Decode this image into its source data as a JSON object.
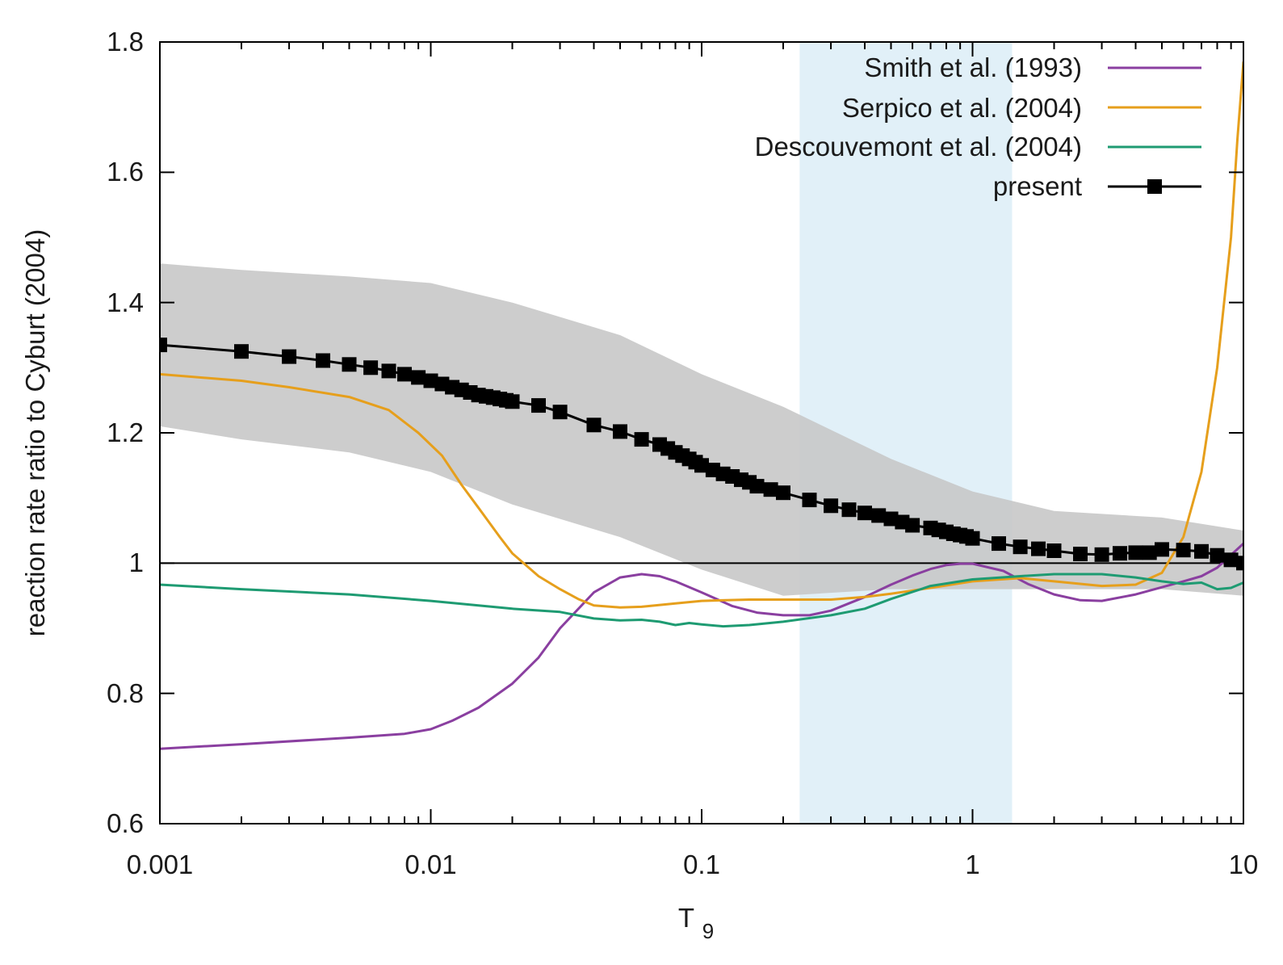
{
  "chart_data": {
    "type": "line",
    "title": "",
    "xlabel": "T",
    "xlabel_subscript": "9",
    "ylabel": "reaction rate ratio to Cyburt (2004)",
    "xscale": "log",
    "xlim": [
      0.001,
      10
    ],
    "ylim": [
      0.6,
      1.8
    ],
    "x_ticks": [
      0.001,
      0.01,
      0.1,
      1,
      10
    ],
    "x_tick_labels": [
      "0.001",
      "0.01",
      "0.1",
      "1",
      "10"
    ],
    "y_ticks": [
      0.6,
      0.8,
      1.0,
      1.2,
      1.4,
      1.6,
      1.8
    ],
    "y_tick_labels": [
      "0.6",
      "0.8",
      "1",
      "1.2",
      "1.4",
      "1.6",
      "1.8"
    ],
    "grid": false,
    "legend_position": "top-right",
    "reference_line": {
      "y": 1.0,
      "color": "#000000"
    },
    "highlight_band": {
      "x_range": [
        0.23,
        1.4
      ],
      "color": "#e1f0f8"
    },
    "uncertainty_band": {
      "color": "#c8c8c8",
      "x": [
        0.001,
        0.002,
        0.005,
        0.01,
        0.02,
        0.05,
        0.1,
        0.2,
        0.5,
        1,
        2,
        5,
        10
      ],
      "upper": [
        1.46,
        1.45,
        1.44,
        1.43,
        1.4,
        1.35,
        1.29,
        1.24,
        1.16,
        1.11,
        1.08,
        1.07,
        1.05
      ],
      "lower": [
        1.21,
        1.19,
        1.17,
        1.14,
        1.09,
        1.04,
        0.99,
        0.95,
        0.96,
        0.96,
        0.96,
        0.96,
        0.95
      ]
    },
    "series": [
      {
        "name": "Smith et al. (1993)",
        "color": "#8a3fa0",
        "x": [
          0.001,
          0.002,
          0.005,
          0.008,
          0.01,
          0.012,
          0.015,
          0.02,
          0.025,
          0.03,
          0.04,
          0.05,
          0.06,
          0.07,
          0.08,
          0.1,
          0.13,
          0.16,
          0.2,
          0.25,
          0.3,
          0.4,
          0.5,
          0.6,
          0.7,
          0.8,
          0.9,
          1.0,
          1.3,
          1.6,
          2.0,
          2.5,
          3.0,
          4.0,
          5.0,
          6.0,
          7.0,
          8.0,
          10.0
        ],
        "values": [
          0.715,
          0.722,
          0.732,
          0.738,
          0.745,
          0.758,
          0.778,
          0.815,
          0.855,
          0.9,
          0.955,
          0.978,
          0.983,
          0.98,
          0.972,
          0.955,
          0.934,
          0.924,
          0.92,
          0.92,
          0.927,
          0.948,
          0.967,
          0.981,
          0.991,
          0.997,
          0.999,
          0.999,
          0.988,
          0.968,
          0.952,
          0.943,
          0.942,
          0.952,
          0.963,
          0.972,
          0.98,
          0.993,
          1.03
        ]
      },
      {
        "name": "Serpico et al. (2004)",
        "color": "#e69f1c",
        "x": [
          0.001,
          0.002,
          0.003,
          0.005,
          0.007,
          0.009,
          0.011,
          0.013,
          0.015,
          0.018,
          0.02,
          0.025,
          0.03,
          0.035,
          0.04,
          0.05,
          0.06,
          0.08,
          0.1,
          0.15,
          0.2,
          0.3,
          0.4,
          0.5,
          0.7,
          1.0,
          1.5,
          2.0,
          3.0,
          4.0,
          5.0,
          6.0,
          7.0,
          8.0,
          9.0,
          9.5,
          10.0
        ],
        "values": [
          1.29,
          1.28,
          1.27,
          1.255,
          1.235,
          1.2,
          1.165,
          1.12,
          1.085,
          1.04,
          1.015,
          0.98,
          0.96,
          0.945,
          0.935,
          0.932,
          0.933,
          0.938,
          0.942,
          0.944,
          0.944,
          0.944,
          0.948,
          0.953,
          0.962,
          0.972,
          0.977,
          0.972,
          0.965,
          0.967,
          0.985,
          1.04,
          1.14,
          1.3,
          1.5,
          1.65,
          1.77
        ]
      },
      {
        "name": "Descouvemont et al. (2004)",
        "color": "#1e9b72",
        "x": [
          0.001,
          0.002,
          0.005,
          0.01,
          0.02,
          0.03,
          0.04,
          0.05,
          0.06,
          0.07,
          0.08,
          0.09,
          0.1,
          0.12,
          0.15,
          0.2,
          0.3,
          0.4,
          0.5,
          0.7,
          1.0,
          1.5,
          2.0,
          3.0,
          4.0,
          5.0,
          6.0,
          7.0,
          8.0,
          9.0,
          10.0
        ],
        "values": [
          0.967,
          0.96,
          0.952,
          0.942,
          0.93,
          0.925,
          0.915,
          0.912,
          0.913,
          0.91,
          0.905,
          0.908,
          0.906,
          0.903,
          0.905,
          0.91,
          0.92,
          0.93,
          0.945,
          0.965,
          0.975,
          0.98,
          0.983,
          0.983,
          0.978,
          0.972,
          0.968,
          0.97,
          0.96,
          0.962,
          0.97
        ]
      },
      {
        "name": "present",
        "color": "#000000",
        "marker": "square",
        "x": [
          0.001,
          0.002,
          0.003,
          0.004,
          0.005,
          0.006,
          0.007,
          0.008,
          0.009,
          0.01,
          0.011,
          0.012,
          0.013,
          0.014,
          0.015,
          0.016,
          0.017,
          0.018,
          0.019,
          0.02,
          0.025,
          0.03,
          0.04,
          0.05,
          0.06,
          0.07,
          0.075,
          0.08,
          0.085,
          0.09,
          0.095,
          0.1,
          0.11,
          0.12,
          0.13,
          0.14,
          0.15,
          0.16,
          0.18,
          0.2,
          0.25,
          0.3,
          0.35,
          0.4,
          0.45,
          0.5,
          0.55,
          0.6,
          0.7,
          0.75,
          0.8,
          0.85,
          0.9,
          0.95,
          1.0,
          1.25,
          1.5,
          1.75,
          2.0,
          2.5,
          3.0,
          3.5,
          4.0,
          4.5,
          5.0,
          6.0,
          7.0,
          8.0,
          9.0,
          10.0
        ],
        "values": [
          1.335,
          1.325,
          1.317,
          1.311,
          1.305,
          1.3,
          1.295,
          1.29,
          1.285,
          1.28,
          1.275,
          1.27,
          1.266,
          1.262,
          1.258,
          1.256,
          1.254,
          1.252,
          1.25,
          1.248,
          1.242,
          1.232,
          1.212,
          1.202,
          1.19,
          1.182,
          1.176,
          1.17,
          1.165,
          1.16,
          1.155,
          1.15,
          1.143,
          1.137,
          1.133,
          1.128,
          1.124,
          1.118,
          1.113,
          1.108,
          1.097,
          1.088,
          1.082,
          1.077,
          1.073,
          1.068,
          1.063,
          1.058,
          1.054,
          1.051,
          1.048,
          1.045,
          1.043,
          1.041,
          1.038,
          1.03,
          1.025,
          1.022,
          1.019,
          1.014,
          1.013,
          1.015,
          1.016,
          1.016,
          1.021,
          1.02,
          1.018,
          1.012,
          1.005,
          1.0
        ]
      }
    ]
  }
}
